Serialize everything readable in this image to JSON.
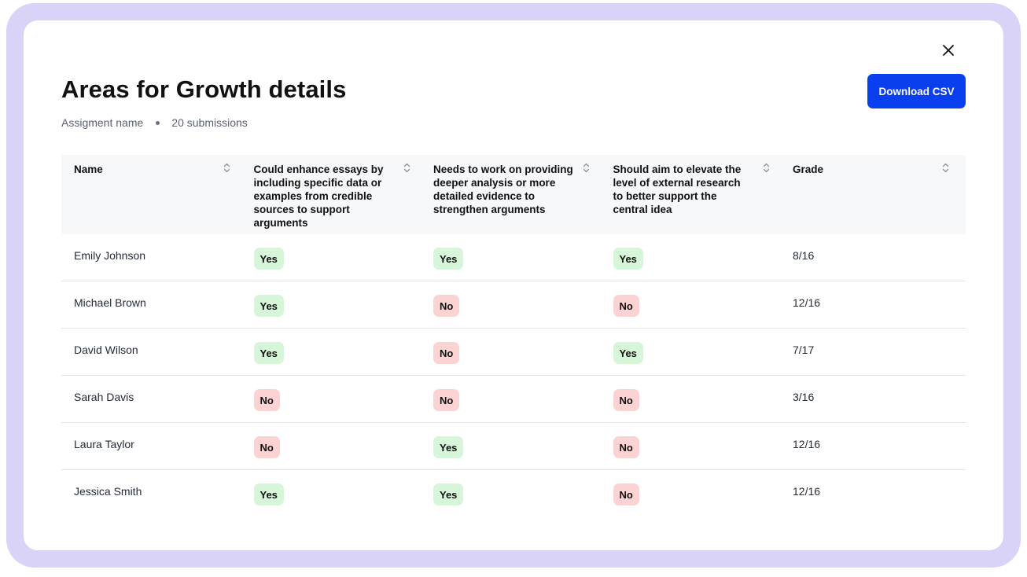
{
  "modal": {
    "title": "Areas for Growth details",
    "assignment_name": "Assigment name",
    "submissions": "20 submissions",
    "download_label": "Download CSV"
  },
  "table": {
    "headers": [
      "Name",
      "Could enhance essays by including specific data or examples from credible sources to support arguments",
      "Needs to work on providing deeper analysis or more detailed evidence to strengthen arguments",
      "Should aim to elevate the level of external research to better support the central idea",
      "Grade"
    ],
    "rows": [
      {
        "name": "Emily Johnson",
        "c1": "Yes",
        "c2": "Yes",
        "c3": "Yes",
        "grade": "8/16"
      },
      {
        "name": "Michael Brown",
        "c1": "Yes",
        "c2": "No",
        "c3": "No",
        "grade": "12/16"
      },
      {
        "name": "David Wilson",
        "c1": "Yes",
        "c2": "No",
        "c3": "Yes",
        "grade": "7/17"
      },
      {
        "name": "Sarah Davis",
        "c1": "No",
        "c2": "No",
        "c3": "No",
        "grade": "3/16"
      },
      {
        "name": "Laura Taylor",
        "c1": "No",
        "c2": "Yes",
        "c3": "No",
        "grade": "12/16"
      },
      {
        "name": "Jessica Smith",
        "c1": "Yes",
        "c2": "Yes",
        "c3": "No",
        "grade": "12/16"
      }
    ]
  },
  "colors": {
    "accent": "#0a3ff0",
    "backdrop": "#d9d3f7",
    "yes_bg": "#d7f5d9",
    "no_bg": "#fbd3d3"
  },
  "icons": {
    "close": "close-icon",
    "sort": "sort-icon"
  }
}
